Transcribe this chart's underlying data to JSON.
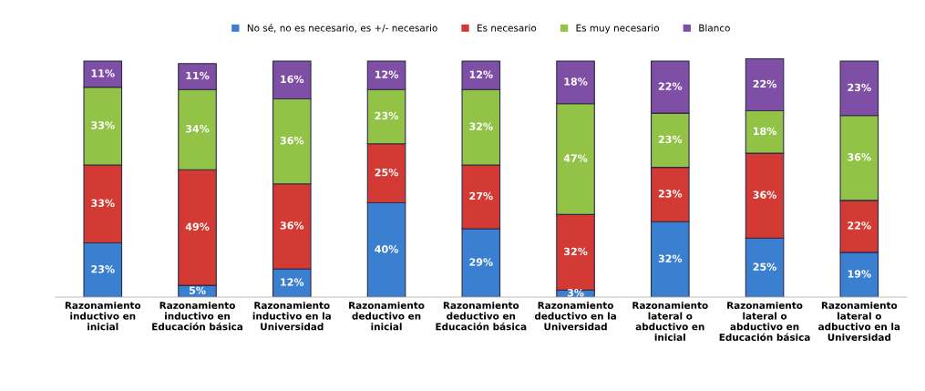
{
  "chart_data": {
    "type": "bar",
    "stacked": true,
    "legend": "top",
    "grid": false,
    "tick_labels": "x",
    "categories": [
      "Razonamiento\ninductivo en\ninicial",
      "Razonamiento\ninductivo en\nEducación básica",
      "Razonamiento\ninductivo en la\nUniversidad",
      "Razonamiento\ndeductivo en\ninicial",
      "Razonamiento\ndeductivo en\nEducación básica",
      "Razonamiento\ndeductivo en la\nUniversidad",
      "Razonamiento\nlateral o\nabductivo en\ninicial",
      "Razonamiento\nlateral o\nabductivo en\nEducación básica",
      "Razonamiento\nlateral o\nadbuctivo en la\nUniversidad"
    ],
    "series": [
      {
        "name": "No sé, no es necesario, es +/- necesario",
        "color": "#3b7fd1",
        "values": [
          23,
          5,
          12,
          40,
          29,
          3,
          32,
          25,
          19
        ],
        "value_labels": [
          "23%",
          "5%",
          "12%",
          "40%",
          "29%",
          "3%",
          "32%",
          "25%",
          "19%"
        ]
      },
      {
        "name": "Es necesario",
        "color": "#d33a34",
        "values": [
          33,
          49,
          36,
          25,
          27,
          32,
          23,
          36,
          22
        ],
        "value_labels": [
          "33%",
          "49%",
          "36%",
          "25%",
          "27%",
          "32%",
          "23%",
          "36%",
          "22%"
        ]
      },
      {
        "name": "Es muy necesario",
        "color": "#92c346",
        "values": [
          33,
          34,
          36,
          23,
          32,
          47,
          23,
          18,
          36
        ],
        "value_labels": [
          "33%",
          "34%",
          "36%",
          "23%",
          "32%",
          "47%",
          "23%",
          "18%",
          "36%"
        ]
      },
      {
        "name": "Blanco",
        "color": "#7e4fa5",
        "values": [
          11,
          11,
          16,
          12,
          12,
          18,
          22,
          22,
          23
        ],
        "value_labels": [
          "11%",
          "11%",
          "16%",
          "12%",
          "12%",
          "18%",
          "22%",
          "22%",
          "23%"
        ]
      }
    ]
  }
}
